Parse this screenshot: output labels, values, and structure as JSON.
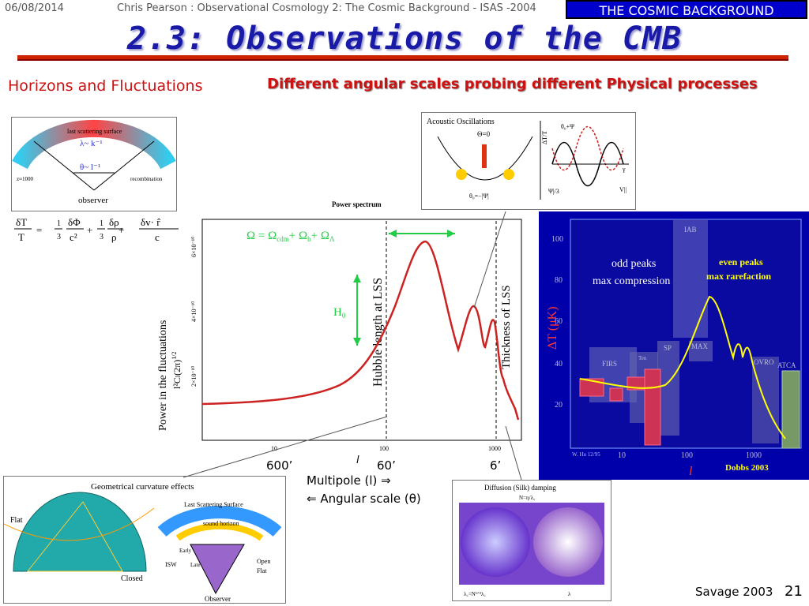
{
  "header": {
    "date": "06/08/2014",
    "course": "Chris Pearson :   Observational Cosmology 2: The Cosmic Background - ISAS -2004",
    "badge": "THE COSMIC BACKGROUND"
  },
  "title": "2.3: Observations of the CMB",
  "left_heading": "Horizons and Fluctuations",
  "right_heading": "Different angular scales probing different Physical processes",
  "horizon_figure": {
    "surface_label": "last scattering surface",
    "lambda_label": "λ~ k⁻¹",
    "theta_label": "θ~ l⁻¹",
    "z_label": "z≈1000",
    "recomb_label": "recombination",
    "observer_label": "observer"
  },
  "equation": {
    "lhs_num": "δT",
    "lhs_den": "T",
    "t1_num": "1",
    "t1_den": "3",
    "t1b_num": "δΦ",
    "t1b_den": "c²",
    "t2_num": "1",
    "t2_den": "3",
    "t2b_num": "δρ",
    "t2b_den": "ρ",
    "t3_num": "δv· r̂",
    "t3_den": "c",
    "eq": "=",
    "plus": "+"
  },
  "power_spectrum": {
    "title": "Power spectrum",
    "ylabel1": "Power in the fluctuations",
    "ylabel2": "l²C",
    "ylabel2_sub": "l",
    "ylabel2_tail": "(2π)",
    "ylabel2_sup": "1/2",
    "yticks": [
      "6×10⁻¹⁰",
      "4×10⁻¹⁰",
      "2×10⁻¹⁰"
    ],
    "xticks": [
      "10",
      "100",
      "1000"
    ],
    "omega_eq": "Ω  =  Ω",
    "omega_cdm": "cdm",
    "omega_plus_b": "+ Ω",
    "omega_b": "b",
    "omega_plus_l": "+  Ω",
    "omega_l": "Λ",
    "h0": "H",
    "h0_sub": "0",
    "hubble_label": "Hubble length at LSS",
    "thickness_label": "Thickness of LSS",
    "color_curve": "#cc2222",
    "color_green": "#22cc44"
  },
  "angle_labels": {
    "a600": "600’",
    "a60": "60’",
    "a6": "6’",
    "l": "l"
  },
  "axis_caption": {
    "multipole": "Multipole (l) ⇒",
    "angular": "⇐ Angular scale (θ)"
  },
  "acoustic": {
    "title": "Acoustic Oscillations",
    "theta0": "Θ=0",
    "psi": "θ₀+Ψ",
    "dtt": "ΔT/T",
    "bottom": "θ₀=−|Ψ|",
    "gamma": "γ",
    "psi_low": "Ψ|/3",
    "v_par": "V||"
  },
  "dobbs": {
    "odd_peaks": "odd peaks",
    "max_comp": "max compression",
    "even_peaks": "even peaks",
    "max_rare": "max rarefaction",
    "ylabel": "ΔT (μK)",
    "yticks": [
      "100",
      "80",
      "60",
      "40",
      "20"
    ],
    "xticks": [
      "10",
      "100",
      "1000"
    ],
    "xlabel": "l",
    "credit": "Dobbs 2003",
    "whu": "W. Hu 12/95",
    "exp_labels": [
      "FIRS",
      "Ten",
      "SP",
      "MAX",
      "IAB",
      "OVRO",
      "ATCA"
    ],
    "bg": "#0000aa"
  },
  "curvature": {
    "title": "Geometrical curvature effects",
    "flat": "Flat",
    "closed": "Closed",
    "lss": "Last Scattering Surface",
    "sound": "sound horizon",
    "early": "Early",
    "isw": "ISW",
    "late": "Late",
    "open": "Open",
    "flat2": "Flat",
    "observer": "Observer"
  },
  "silk": {
    "title": "Diffusion (Silk) damping",
    "sub": "N=η/λ꜀",
    "bottom_left": "λ꜀=N¹ᐟ²λ꜀",
    "bottom_right": "λ"
  },
  "footer": {
    "credit": "Savage 2003",
    "page": "21"
  }
}
